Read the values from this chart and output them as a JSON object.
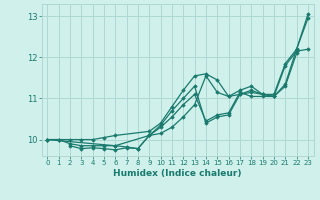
{
  "background_color": "#cff0eb",
  "grid_color": "#aed8d3",
  "line_color": "#1a7a6e",
  "marker_color": "#1a7a6e",
  "xlabel": "Humidex (Indice chaleur)",
  "xlim": [
    -0.5,
    23.5
  ],
  "ylim": [
    9.6,
    13.3
  ],
  "xticks": [
    0,
    1,
    2,
    3,
    4,
    5,
    6,
    7,
    8,
    9,
    10,
    11,
    12,
    13,
    14,
    15,
    16,
    17,
    18,
    19,
    20,
    21,
    22,
    23
  ],
  "yticks": [
    10,
    11,
    12,
    13
  ],
  "series": [
    {
      "x": [
        0,
        1,
        2,
        3,
        4,
        5,
        6,
        9,
        10,
        11,
        12,
        13,
        14,
        15,
        16,
        17,
        18,
        19,
        20,
        21,
        22,
        23
      ],
      "y": [
        10.0,
        10.0,
        10.0,
        10.0,
        10.0,
        10.05,
        10.1,
        10.2,
        10.4,
        10.8,
        11.2,
        11.55,
        11.6,
        11.45,
        11.05,
        11.2,
        11.3,
        11.1,
        11.1,
        11.85,
        12.2,
        13.05
      ]
    },
    {
      "x": [
        0,
        1,
        2,
        3,
        4,
        5,
        6,
        9,
        10,
        11,
        12,
        13,
        14,
        15,
        16,
        17,
        18,
        19,
        20,
        21,
        22,
        23
      ],
      "y": [
        10.0,
        10.0,
        9.9,
        9.85,
        9.85,
        9.85,
        9.85,
        10.1,
        10.15,
        10.3,
        10.55,
        10.85,
        11.55,
        11.15,
        11.05,
        11.1,
        11.2,
        11.1,
        11.05,
        11.8,
        12.15,
        12.2
      ]
    },
    {
      "x": [
        0,
        6,
        7,
        8,
        9,
        10,
        11,
        12,
        13,
        14,
        15,
        16,
        17,
        18,
        19,
        20,
        21,
        22,
        23
      ],
      "y": [
        10.0,
        9.85,
        9.82,
        9.78,
        10.1,
        10.35,
        10.7,
        11.0,
        11.3,
        10.4,
        10.55,
        10.6,
        11.1,
        11.15,
        11.1,
        11.05,
        11.35,
        12.2,
        12.95
      ]
    },
    {
      "x": [
        2,
        3,
        4,
        5,
        6,
        7,
        8,
        9,
        10,
        11,
        12,
        13,
        14,
        15,
        16,
        17,
        18,
        19,
        20,
        21,
        22
      ],
      "y": [
        9.85,
        9.78,
        9.8,
        9.78,
        9.75,
        9.8,
        9.78,
        10.1,
        10.3,
        10.55,
        10.85,
        11.1,
        10.45,
        10.6,
        10.65,
        11.15,
        11.05,
        11.05,
        11.05,
        11.3,
        12.1
      ]
    }
  ]
}
